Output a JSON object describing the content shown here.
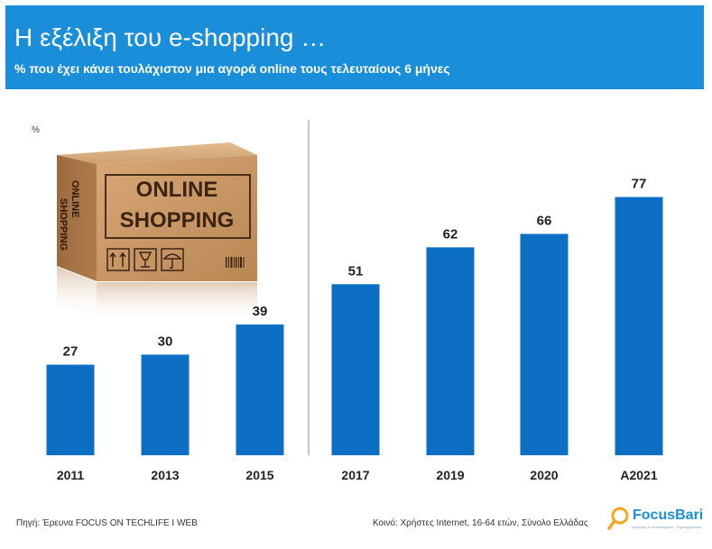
{
  "header": {
    "title": "Η εξέλιξη του e-shopping …",
    "subtitle": "% που έχει κάνει τουλάχιστον μια αγορά  online τους τελευταίους 6 μήνες"
  },
  "unit_label": "%",
  "image": {
    "line1": "ONLINE",
    "line2": "SHOPPING",
    "side1": "ONLINE",
    "side2": "SHOPPING"
  },
  "footer": {
    "source": "Πηγή: Έρευνα FOCUS ON TECHLIFE I WEB",
    "population": "Κοινό: Χρήστες Internet, 16-64 ετών, Σύνολο Ελλάδας"
  },
  "logo": {
    "name": "FocusBari",
    "tagline": "επιλογές & συναισθήματα · δημιουργώντας"
  },
  "colors": {
    "header": "#1a8ed9",
    "bar": "#0c6fc4",
    "divider": "#b0b0b0"
  },
  "chart_data": {
    "type": "bar",
    "title": "Η εξέλιξη του e-shopping …",
    "subtitle": "% που έχει κάνει τουλάχιστον μια αγορά  online τους τελευταίους 6 μήνες",
    "ylabel": "%",
    "categories": [
      "2011",
      "2013",
      "2015",
      "2017",
      "2019",
      "2020",
      "A2021"
    ],
    "values": [
      27,
      30,
      39,
      51,
      62,
      66,
      77
    ],
    "ylim": [
      0,
      100
    ],
    "grid": false,
    "legend": "none"
  }
}
